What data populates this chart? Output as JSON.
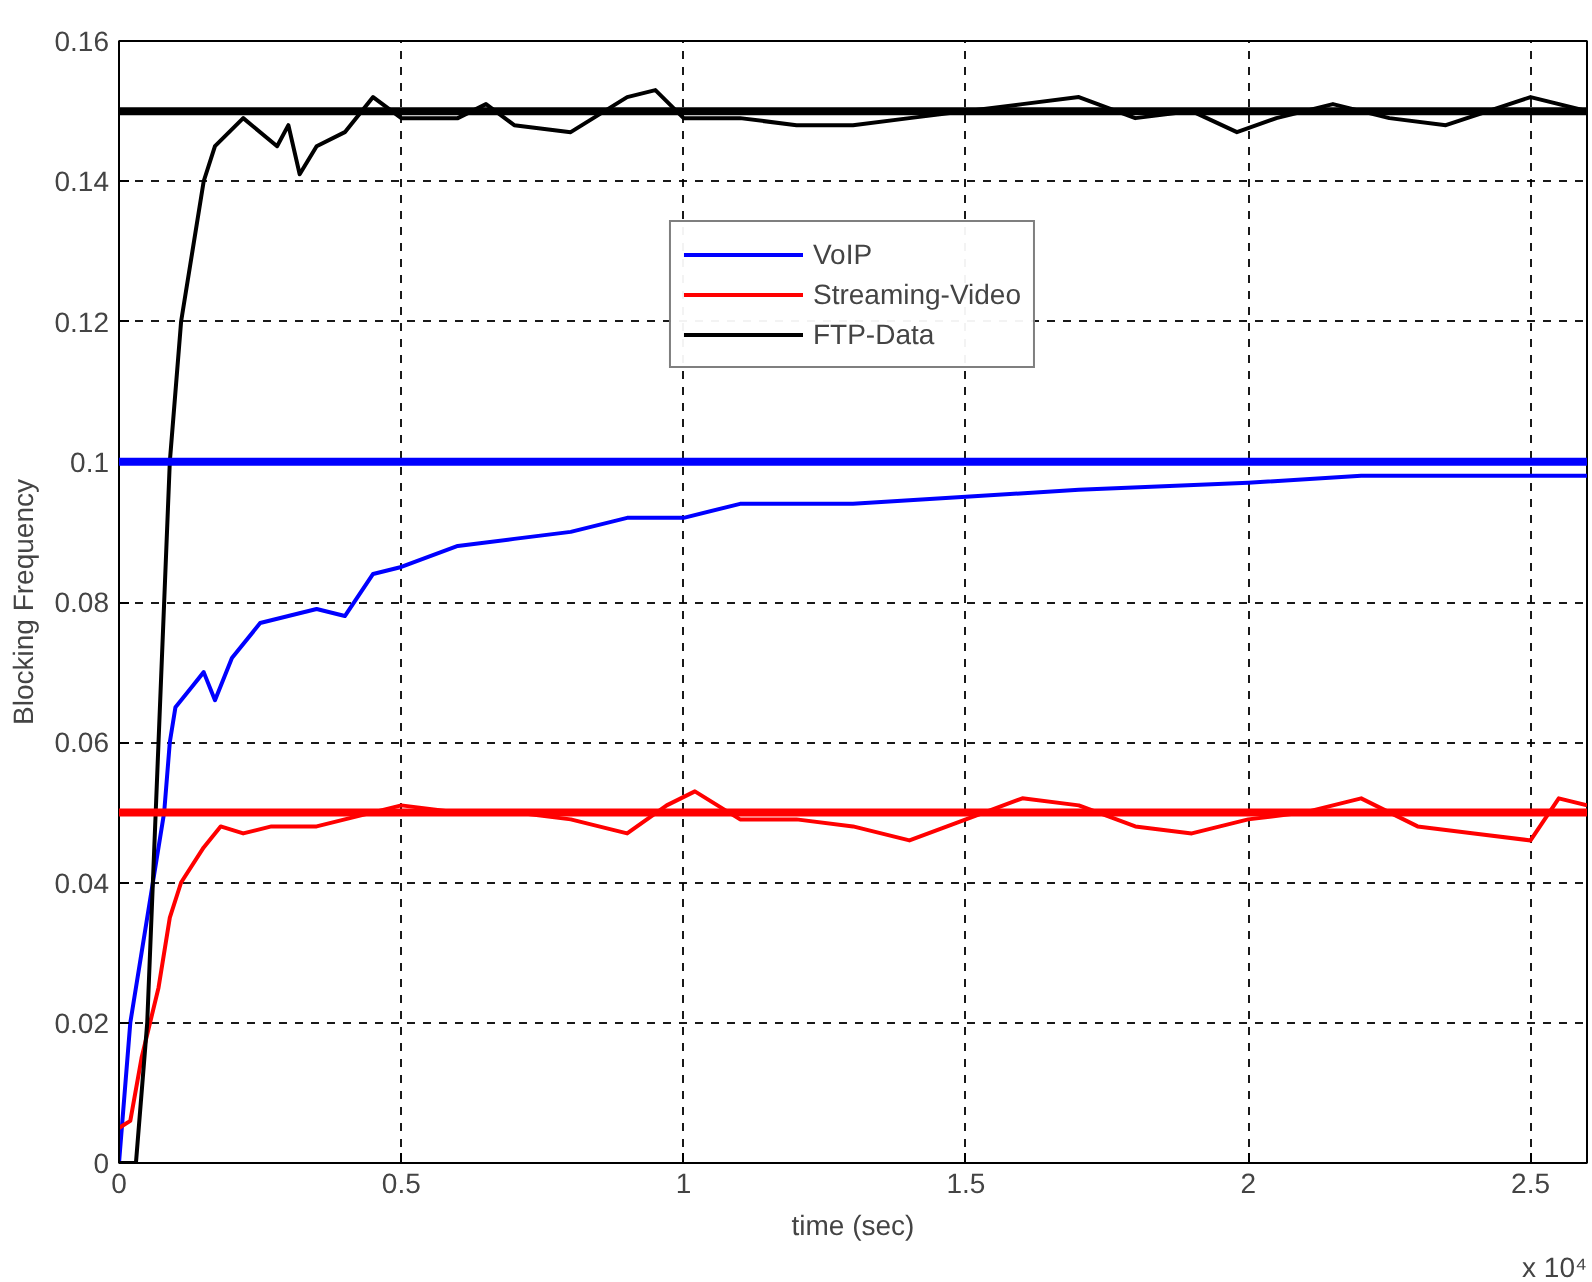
{
  "chart_data": {
    "type": "line",
    "xlabel": "time (sec)",
    "ylabel": "Blocking Frequency",
    "xlim": [
      0,
      2.6
    ],
    "ylim": [
      0,
      0.16
    ],
    "xticks": [
      0,
      0.5,
      1,
      1.5,
      2,
      2.5
    ],
    "yticks": [
      0,
      0.02,
      0.04,
      0.06,
      0.08,
      0.1,
      0.12,
      0.14,
      0.16
    ],
    "grid": true,
    "legend": "top",
    "line_style": "solid",
    "marker": "none",
    "annotations": [
      "x 10⁴"
    ],
    "ref_lines": [
      {
        "axis": "y",
        "value": 0.15,
        "label": null,
        "color": "#000000"
      },
      {
        "axis": "y",
        "value": 0.1,
        "label": null,
        "color": "#0000ff"
      },
      {
        "axis": "y",
        "value": 0.05,
        "label": null,
        "color": "#ff0000"
      }
    ],
    "series": [
      {
        "name": "VoIP",
        "color": "#0000ff",
        "x": [
          0,
          0.02,
          0.04,
          0.06,
          0.08,
          0.09,
          0.1,
          0.13,
          0.15,
          0.17,
          0.2,
          0.25,
          0.3,
          0.35,
          0.4,
          0.45,
          0.5,
          0.6,
          0.7,
          0.8,
          0.9,
          1.0,
          1.1,
          1.3,
          1.5,
          1.7,
          2.0,
          2.2,
          2.5,
          2.6
        ],
        "values": [
          0.0,
          0.02,
          0.03,
          0.04,
          0.05,
          0.06,
          0.065,
          0.068,
          0.07,
          0.066,
          0.072,
          0.077,
          0.078,
          0.079,
          0.078,
          0.084,
          0.085,
          0.088,
          0.089,
          0.09,
          0.092,
          0.092,
          0.094,
          0.094,
          0.095,
          0.096,
          0.097,
          0.098,
          0.098,
          0.098
        ]
      },
      {
        "name": "Streaming-Video",
        "color": "#ff0000",
        "x": [
          0,
          0.02,
          0.04,
          0.07,
          0.09,
          0.11,
          0.15,
          0.18,
          0.22,
          0.27,
          0.35,
          0.45,
          0.5,
          0.6,
          0.7,
          0.8,
          0.9,
          0.97,
          1.02,
          1.1,
          1.2,
          1.3,
          1.4,
          1.5,
          1.6,
          1.7,
          1.8,
          1.9,
          2.0,
          2.1,
          2.2,
          2.3,
          2.4,
          2.5,
          2.55,
          2.6
        ],
        "values": [
          0.005,
          0.006,
          0.015,
          0.025,
          0.035,
          0.04,
          0.045,
          0.048,
          0.047,
          0.048,
          0.048,
          0.05,
          0.051,
          0.05,
          0.05,
          0.049,
          0.047,
          0.051,
          0.053,
          0.049,
          0.049,
          0.048,
          0.046,
          0.049,
          0.052,
          0.051,
          0.048,
          0.047,
          0.049,
          0.05,
          0.052,
          0.048,
          0.047,
          0.046,
          0.052,
          0.051
        ]
      },
      {
        "name": "FTP-Data",
        "color": "#000000",
        "x": [
          0,
          0.03,
          0.05,
          0.07,
          0.09,
          0.11,
          0.13,
          0.15,
          0.17,
          0.22,
          0.28,
          0.3,
          0.32,
          0.35,
          0.4,
          0.45,
          0.5,
          0.6,
          0.65,
          0.7,
          0.8,
          0.9,
          0.95,
          1.0,
          1.1,
          1.2,
          1.3,
          1.4,
          1.5,
          1.6,
          1.7,
          1.8,
          1.9,
          1.98,
          2.05,
          2.15,
          2.25,
          2.35,
          2.5,
          2.6
        ],
        "values": [
          0,
          0,
          0.02,
          0.06,
          0.1,
          0.12,
          0.13,
          0.14,
          0.145,
          0.149,
          0.145,
          0.148,
          0.141,
          0.145,
          0.147,
          0.152,
          0.149,
          0.149,
          0.151,
          0.148,
          0.147,
          0.152,
          0.153,
          0.149,
          0.149,
          0.148,
          0.148,
          0.149,
          0.15,
          0.151,
          0.152,
          0.149,
          0.15,
          0.147,
          0.149,
          0.151,
          0.149,
          0.148,
          0.152,
          0.15
        ]
      }
    ]
  }
}
